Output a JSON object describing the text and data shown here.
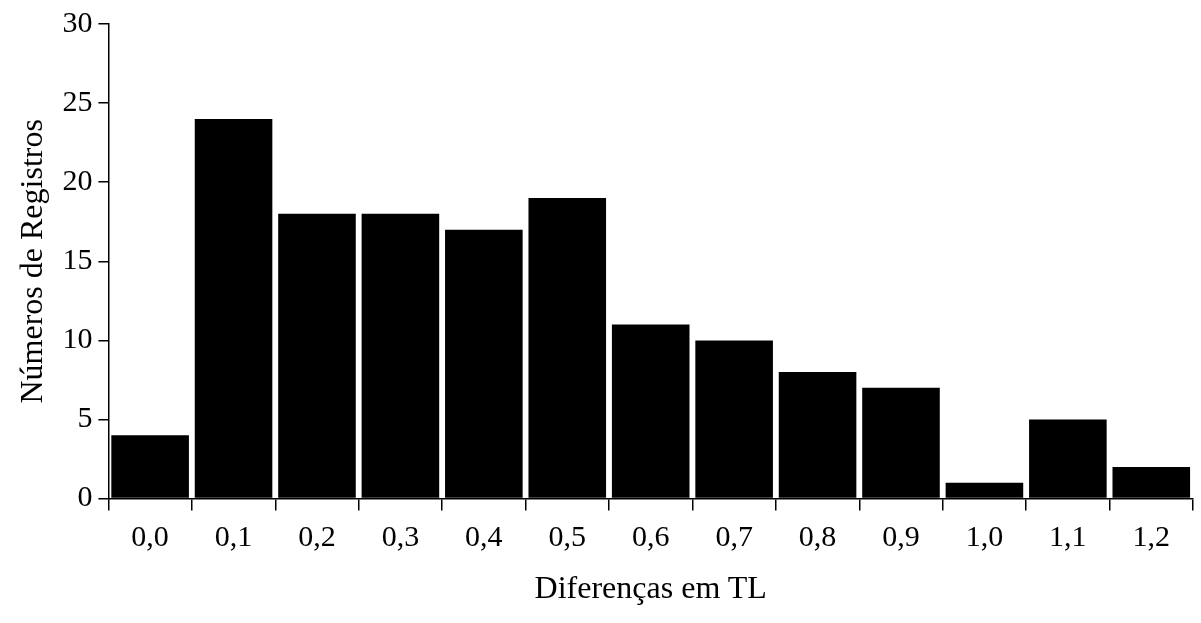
{
  "chart_data": {
    "type": "bar",
    "xlabel": "Diferenças em TL",
    "ylabel": "Números de Registros",
    "categories": [
      "0,0",
      "0,1",
      "0,2",
      "0,3",
      "0,4",
      "0,5",
      "0,6",
      "0,7",
      "0,8",
      "0,9",
      "1,0",
      "1,1",
      "1,2"
    ],
    "values": [
      4,
      24,
      18,
      18,
      17,
      19,
      11,
      10,
      8,
      7,
      1,
      5,
      2
    ],
    "color": "#000000",
    "ylim": [
      0,
      30
    ],
    "yticks": [
      0,
      5,
      10,
      15,
      20,
      25,
      30
    ],
    "grid": false,
    "legend": false
  }
}
